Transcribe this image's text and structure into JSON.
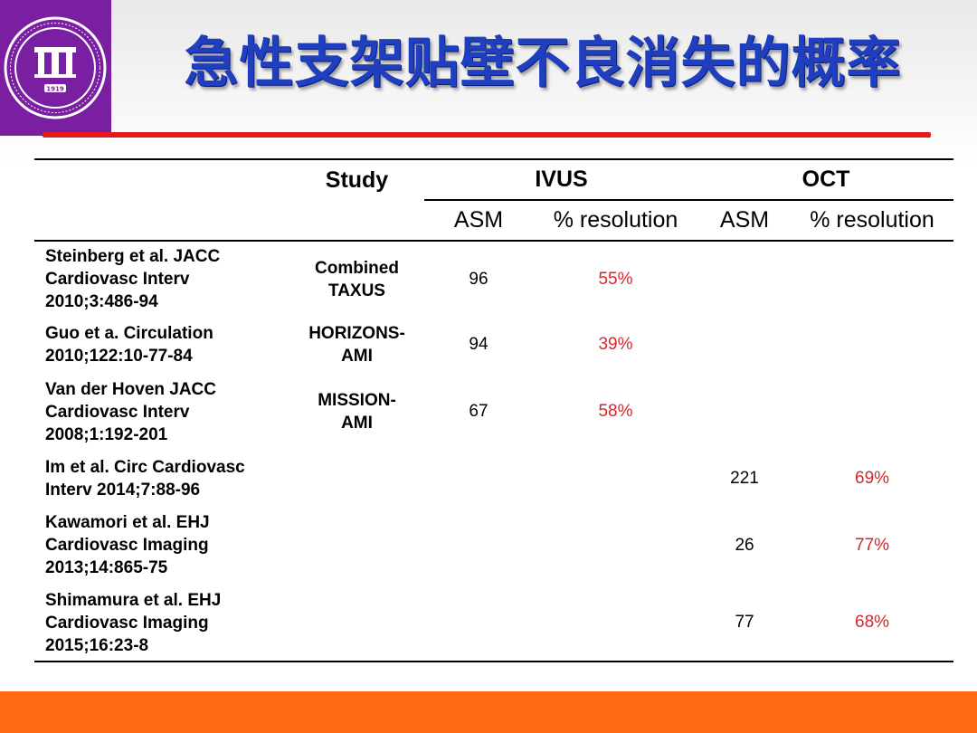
{
  "title": "急性支架贴壁不良消失的概率",
  "colors": {
    "title": "#1f3fbf",
    "rule": "#e21b1b",
    "percent": "#d9262b",
    "footer": "#ff6a13",
    "logo_bg": "#7b1fa2"
  },
  "logo": {
    "icon": "university-hospital-seal-icon",
    "year_text": "1919"
  },
  "table": {
    "header": {
      "study": "Study",
      "ivus": "IVUS",
      "oct": "OCT"
    },
    "subheader": {
      "ivus_asm": "ASM",
      "ivus_res": "% resolution",
      "oct_asm": "ASM",
      "oct_res": "% resolution"
    },
    "rows": [
      {
        "ref": [
          "Steinberg et al. JACC",
          "Cardiovasc Interv",
          "2010;3:486-94"
        ],
        "study": [
          "Combined",
          "TAXUS"
        ],
        "ivus_asm": "96",
        "ivus_res": "55%",
        "oct_asm": "",
        "oct_res": ""
      },
      {
        "ref": [
          "Guo et a. Circulation",
          "2010;122:10-77-84"
        ],
        "study": [
          "HORIZONS-",
          "AMI"
        ],
        "ivus_asm": "94",
        "ivus_res": "39%",
        "oct_asm": "",
        "oct_res": ""
      },
      {
        "ref": [
          "Van der Hoven JACC",
          "Cardiovasc Interv",
          "2008;1:192-201"
        ],
        "study": [
          "MISSION-",
          "AMI"
        ],
        "ivus_asm": "67",
        "ivus_res": "58%",
        "oct_asm": "",
        "oct_res": ""
      },
      {
        "ref": [
          "Im et al. Circ Cardiovasc",
          "Interv 2014;7:88-96"
        ],
        "study": [
          "",
          ""
        ],
        "ivus_asm": "",
        "ivus_res": "",
        "oct_asm": "221",
        "oct_res": "69%"
      },
      {
        "ref": [
          "Kawamori et al. EHJ",
          "Cardiovasc Imaging",
          "2013;14:865-75"
        ],
        "study": [
          "",
          ""
        ],
        "ivus_asm": "",
        "ivus_res": "",
        "oct_asm": "26",
        "oct_res": "77%"
      },
      {
        "ref": [
          "Shimamura et al. EHJ",
          "Cardiovasc Imaging",
          "2015;16:23-8"
        ],
        "study": [
          "",
          ""
        ],
        "ivus_asm": "",
        "ivus_res": "",
        "oct_asm": "77",
        "oct_res": "68%"
      }
    ]
  }
}
